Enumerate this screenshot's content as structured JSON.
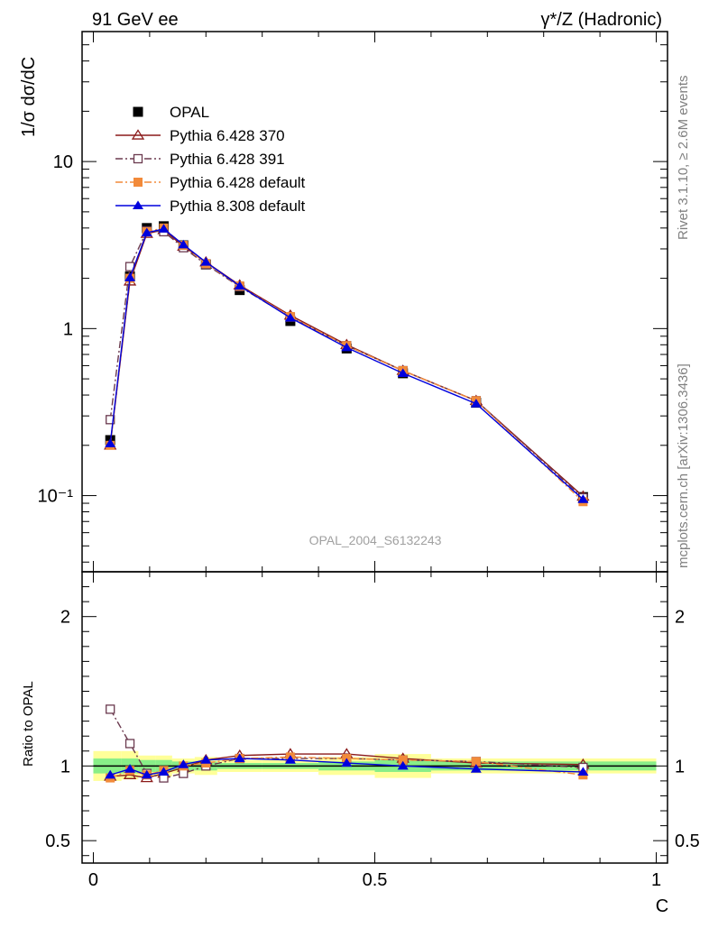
{
  "header": {
    "left": "91 GeV ee",
    "right": "γ*/Z (Hadronic)"
  },
  "side_labels": {
    "rivet": "Rivet 3.1.10, ≥ 2.6M events",
    "mcplots": "mcplots.cern.ch [arXiv:1306.3436]"
  },
  "watermark": "OPAL_2004_S6132243",
  "chart_data": [
    {
      "type": "line",
      "yscale": "log",
      "ylabel": "1/σ dσ/dC",
      "xlim": [
        0,
        1
      ],
      "ylim": [
        0.035,
        60
      ],
      "yticks": [
        {
          "value": 0.1,
          "label": "10⁻¹"
        },
        {
          "value": 1,
          "label": "1"
        },
        {
          "value": 10,
          "label": "10"
        }
      ],
      "legend_position": "top-left",
      "x": [
        0.03,
        0.065,
        0.095,
        0.125,
        0.16,
        0.2,
        0.26,
        0.35,
        0.45,
        0.55,
        0.68,
        0.87
      ],
      "series": [
        {
          "name": "OPAL",
          "color": "#000000",
          "marker": "square-filled",
          "line": "none",
          "values": [
            0.215,
            2.05,
            4.0,
            4.1,
            3.15,
            2.42,
            1.7,
            1.11,
            0.76,
            0.54,
            0.36,
            0.098
          ]
        },
        {
          "name": "Pythia 6.428 370",
          "color": "#8b1a1a",
          "marker": "triangle-open",
          "line": "solid",
          "values": [
            0.2,
            1.92,
            3.7,
            3.9,
            3.1,
            2.5,
            1.82,
            1.2,
            0.8,
            0.56,
            0.37,
            0.099
          ]
        },
        {
          "name": "Pythia 6.428 391",
          "color": "#6b3a4f",
          "marker": "square-open",
          "line": "dashdot",
          "values": [
            0.285,
            2.35,
            3.85,
            3.8,
            3.05,
            2.42,
            1.78,
            1.17,
            0.79,
            0.56,
            0.37,
            0.097
          ]
        },
        {
          "name": "Pythia 6.428 default",
          "color": "#f28a3a",
          "marker": "square-filled",
          "line": "dashdot",
          "values": [
            0.2,
            2.0,
            3.8,
            4.0,
            3.15,
            2.45,
            1.8,
            1.18,
            0.79,
            0.56,
            0.37,
            0.092
          ]
        },
        {
          "name": "Pythia 8.308 default",
          "color": "#0000dd",
          "marker": "triangle-filled",
          "line": "solid",
          "values": [
            0.205,
            2.02,
            3.75,
            3.95,
            3.18,
            2.5,
            1.8,
            1.16,
            0.77,
            0.54,
            0.355,
            0.095
          ]
        }
      ]
    },
    {
      "type": "line",
      "ylabel": "Ratio to OPAL",
      "xlabel": "C",
      "xlim": [
        -0.02,
        1.02
      ],
      "ylim": [
        0.35,
        2.3
      ],
      "xticks": [
        {
          "value": 0,
          "label": "0"
        },
        {
          "value": 0.5,
          "label": "0.5"
        },
        {
          "value": 1,
          "label": "1"
        }
      ],
      "yticks": [
        {
          "value": 0.5,
          "label": "0.5"
        },
        {
          "value": 1,
          "label": "1"
        },
        {
          "value": 2,
          "label": "2"
        }
      ],
      "bands": [
        {
          "x": [
            0.0,
            0.05
          ],
          "yellow": [
            0.9,
            1.1
          ],
          "green": [
            0.95,
            1.05
          ]
        },
        {
          "x": [
            0.05,
            0.08
          ],
          "yellow": [
            0.91,
            1.1
          ],
          "green": [
            0.95,
            1.05
          ]
        },
        {
          "x": [
            0.08,
            0.11
          ],
          "yellow": [
            0.93,
            1.07
          ],
          "green": [
            0.96,
            1.04
          ]
        },
        {
          "x": [
            0.11,
            0.14
          ],
          "yellow": [
            0.93,
            1.07
          ],
          "green": [
            0.96,
            1.04
          ]
        },
        {
          "x": [
            0.14,
            0.18
          ],
          "yellow": [
            0.95,
            1.05
          ],
          "green": [
            0.97,
            1.03
          ]
        },
        {
          "x": [
            0.18,
            0.22
          ],
          "yellow": [
            0.94,
            1.06
          ],
          "green": [
            0.97,
            1.03
          ]
        },
        {
          "x": [
            0.22,
            0.3
          ],
          "yellow": [
            0.96,
            1.04
          ],
          "green": [
            0.98,
            1.02
          ]
        },
        {
          "x": [
            0.3,
            0.4
          ],
          "yellow": [
            0.96,
            1.04
          ],
          "green": [
            0.98,
            1.02
          ]
        },
        {
          "x": [
            0.4,
            0.5
          ],
          "yellow": [
            0.94,
            1.06
          ],
          "green": [
            0.97,
            1.03
          ]
        },
        {
          "x": [
            0.5,
            0.6
          ],
          "yellow": [
            0.92,
            1.08
          ],
          "green": [
            0.96,
            1.04
          ]
        },
        {
          "x": [
            0.6,
            0.75
          ],
          "yellow": [
            0.95,
            1.05
          ],
          "green": [
            0.97,
            1.03
          ]
        },
        {
          "x": [
            0.75,
            1.0
          ],
          "yellow": [
            0.95,
            1.05
          ],
          "green": [
            0.97,
            1.03
          ]
        }
      ],
      "x": [
        0.03,
        0.065,
        0.095,
        0.125,
        0.16,
        0.2,
        0.26,
        0.35,
        0.45,
        0.55,
        0.68,
        0.87
      ],
      "series": [
        {
          "name": "Pythia 6.428 370",
          "color": "#8b1a1a",
          "marker": "triangle-open",
          "line": "solid",
          "values": [
            0.93,
            0.94,
            0.92,
            0.95,
            0.99,
            1.04,
            1.07,
            1.08,
            1.08,
            1.05,
            1.02,
            1.01
          ]
        },
        {
          "name": "Pythia 6.428 391",
          "color": "#6b3a4f",
          "marker": "square-open",
          "line": "dashdot",
          "values": [
            1.38,
            1.15,
            0.95,
            0.92,
            0.95,
            1.0,
            1.05,
            1.05,
            1.05,
            1.04,
            1.03,
            0.99
          ]
        },
        {
          "name": "Pythia 6.428 default",
          "color": "#f28a3a",
          "marker": "square-filled",
          "line": "dashdot",
          "values": [
            0.92,
            0.97,
            0.94,
            0.97,
            1.0,
            1.02,
            1.05,
            1.06,
            1.05,
            1.04,
            1.03,
            0.94
          ]
        },
        {
          "name": "Pythia 8.308 default",
          "color": "#0000dd",
          "marker": "triangle-filled",
          "line": "solid",
          "values": [
            0.94,
            0.98,
            0.94,
            0.96,
            1.01,
            1.04,
            1.05,
            1.04,
            1.02,
            1.0,
            0.98,
            0.96
          ]
        }
      ]
    }
  ]
}
